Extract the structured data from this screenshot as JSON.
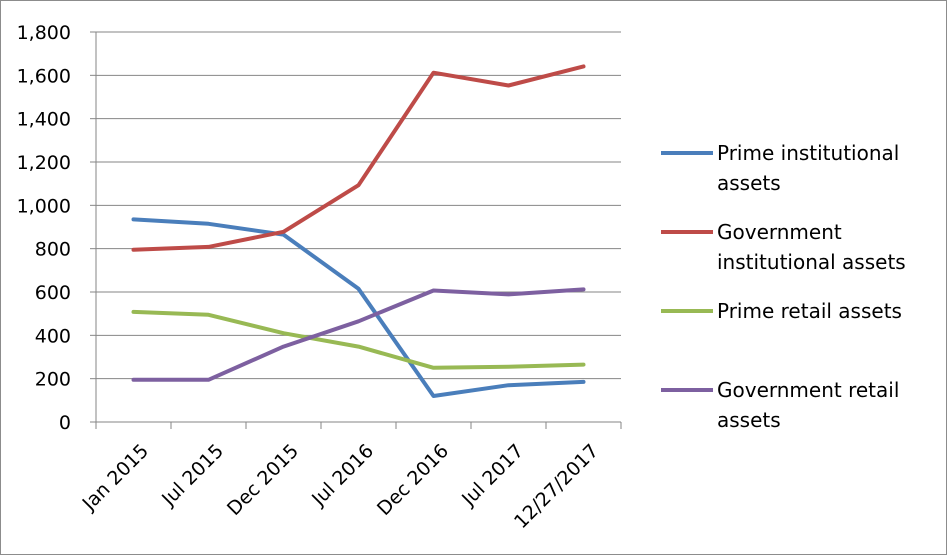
{
  "chart_data": {
    "type": "line",
    "categories": [
      "Jan 2015",
      "Jul 2015",
      "Dec 2015",
      "Jul 2016",
      "Dec 2016",
      "Jul 2017",
      "12/27/2017"
    ],
    "series": [
      {
        "name": "Prime institutional assets",
        "legend_lines": [
          "Prime institutional",
          "assets"
        ],
        "color": "#4a7ebb",
        "values": [
          935,
          915,
          865,
          615,
          120,
          170,
          185
        ]
      },
      {
        "name": "Government institutional assets",
        "legend_lines": [
          "Government",
          "institutional assets"
        ],
        "color": "#be4b48",
        "values": [
          795,
          808,
          878,
          1093,
          1612,
          1553,
          1641
        ]
      },
      {
        "name": "Prime retail assets",
        "legend_lines": [
          "Prime retail assets"
        ],
        "color": "#98b954",
        "values": [
          508,
          495,
          410,
          348,
          250,
          255,
          265
        ]
      },
      {
        "name": "Government retail assets",
        "legend_lines": [
          "Government retail",
          "assets"
        ],
        "color": "#7d60a0",
        "values": [
          195,
          195,
          348,
          465,
          607,
          589,
          612
        ]
      }
    ],
    "y_ticks": [
      "0",
      "200",
      "400",
      "600",
      "800",
      "1,000",
      "1,200",
      "1,400",
      "1,600",
      "1,800"
    ],
    "ylim": [
      0,
      1800
    ],
    "y_step": 200,
    "grid": true,
    "legend_position": "right",
    "title": "",
    "xlabel": "",
    "ylabel": ""
  }
}
